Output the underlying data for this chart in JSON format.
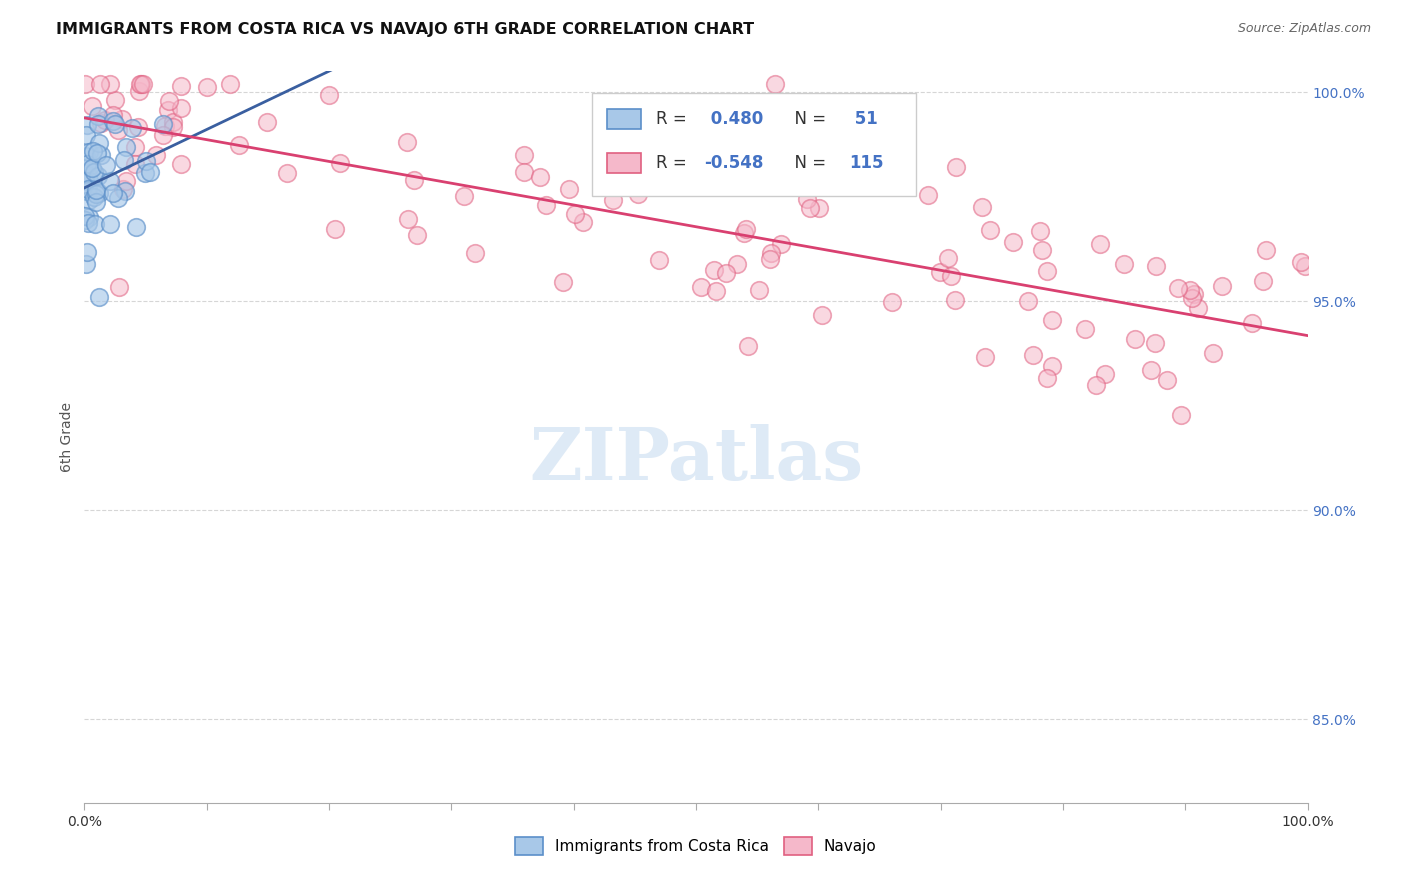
{
  "title": "IMMIGRANTS FROM COSTA RICA VS NAVAJO 6TH GRADE CORRELATION CHART",
  "source": "Source: ZipAtlas.com",
  "ylabel": "6th Grade",
  "legend1_label": "Immigrants from Costa Rica",
  "legend2_label": "Navajo",
  "R_blue": 0.48,
  "N_blue": 51,
  "R_pink": -0.548,
  "N_pink": 115,
  "blue_fill": "#a8c8e8",
  "blue_edge": "#5b8fc9",
  "pink_fill": "#f5b8ca",
  "pink_edge": "#e06080",
  "blue_line_color": "#3a5fa0",
  "pink_line_color": "#d94070",
  "ytick_color": "#4472c4",
  "watermark_color": "#dbe8f5",
  "xlim": [
    0.0,
    1.0
  ],
  "ylim": [
    0.83,
    1.005
  ],
  "yticks": [
    0.85,
    0.9,
    0.95,
    1.0
  ],
  "xticks": [
    0.0,
    0.1,
    0.2,
    0.3,
    0.4,
    0.5,
    0.6,
    0.7,
    0.8,
    0.9,
    1.0
  ]
}
